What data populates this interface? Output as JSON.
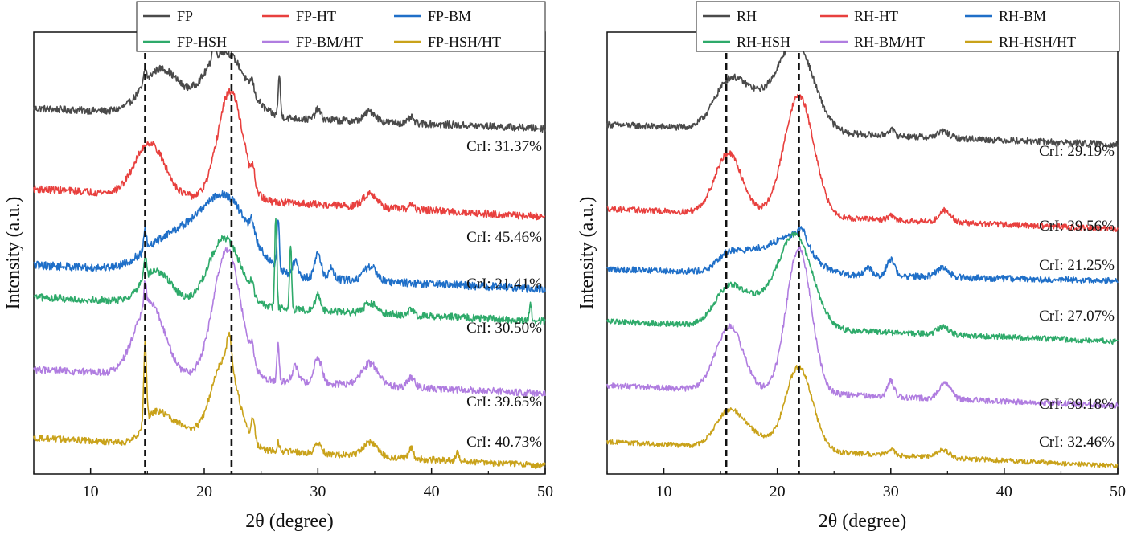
{
  "chart_data": [
    {
      "type": "line",
      "xlabel": "2θ (degree)",
      "ylabel": "Intensity (a.u.)",
      "xlim": [
        5,
        50
      ],
      "ylim": [
        -0.2,
        10.8
      ],
      "xticks": [
        10,
        20,
        30,
        40,
        50
      ],
      "y_ticks_shown": false,
      "grid": false,
      "legend_placement": "top",
      "dashed_reference_lines_x": [
        14.8,
        22.4
      ],
      "series": [
        {
          "name": "FP",
          "color": "#4a4a4a",
          "offset": 8.4,
          "baseline_start": 0.5,
          "baseline_end": 0.0,
          "noise": 0.09,
          "peaks": [
            [
              14.8,
              0.35,
              0.12
            ],
            [
              16.2,
              1.1,
              1.6
            ],
            [
              21.8,
              1.6,
              1.8
            ],
            [
              20.8,
              0.35,
              0.15
            ],
            [
              24.2,
              0.3,
              0.15
            ],
            [
              26.6,
              1.0,
              0.1
            ],
            [
              30.0,
              0.25,
              0.25
            ],
            [
              34.6,
              0.25,
              0.5
            ],
            [
              38.2,
              0.15,
              0.2
            ]
          ],
          "cri": "CrI: 31.37%"
        },
        {
          "name": "FP-HT",
          "color": "#e8403e",
          "offset": 6.2,
          "baseline_start": 0.7,
          "baseline_end": 0.0,
          "noise": 0.09,
          "peaks": [
            [
              15.2,
              1.3,
              1.3
            ],
            [
              22.3,
              2.7,
              1.1
            ],
            [
              24.3,
              0.35,
              0.15
            ],
            [
              34.6,
              0.35,
              0.6
            ],
            [
              38.2,
              0.15,
              0.2
            ]
          ],
          "cri": "CrI: 45.46%"
        },
        {
          "name": "FP-BM",
          "color": "#1f6fc8",
          "offset": 4.4,
          "baseline_start": 0.6,
          "baseline_end": 0.0,
          "noise": 0.1,
          "peaks": [
            [
              14.8,
              0.5,
              0.12
            ],
            [
              17.0,
              0.8,
              2.2
            ],
            [
              21.8,
              1.9,
              2.2
            ],
            [
              24.2,
              0.35,
              0.2
            ],
            [
              26.5,
              1.3,
              0.1
            ],
            [
              28.0,
              0.4,
              0.2
            ],
            [
              30.0,
              0.6,
              0.3
            ],
            [
              31.2,
              0.3,
              0.2
            ],
            [
              34.6,
              0.35,
              0.6
            ]
          ],
          "cri": "CrI: 21.41%"
        },
        {
          "name": "FP-HSH",
          "color": "#2eaa6a",
          "offset": 3.6,
          "baseline_start": 0.6,
          "baseline_end": 0.0,
          "noise": 0.09,
          "peaks": [
            [
              14.8,
              0.55,
              0.12
            ],
            [
              15.8,
              0.8,
              1.3
            ],
            [
              21.8,
              1.7,
              1.4
            ],
            [
              24.2,
              0.3,
              0.15
            ],
            [
              26.3,
              2.3,
              0.09
            ],
            [
              27.6,
              1.6,
              0.09
            ],
            [
              30.0,
              0.4,
              0.25
            ],
            [
              34.6,
              0.25,
              0.5
            ],
            [
              38.2,
              0.15,
              0.2
            ],
            [
              48.7,
              0.5,
              0.09
            ]
          ],
          "cri": "CrI: 30.50%"
        },
        {
          "name": "FP-BM/HT",
          "color": "#b07de0",
          "offset": 1.8,
          "baseline_start": 0.6,
          "baseline_end": 0.0,
          "noise": 0.09,
          "peaks": [
            [
              14.8,
              0.6,
              0.12
            ],
            [
              15.2,
              1.8,
              1.3
            ],
            [
              22.0,
              3.2,
              1.2
            ],
            [
              24.2,
              0.35,
              0.15
            ],
            [
              26.5,
              0.9,
              0.1
            ],
            [
              28.0,
              0.4,
              0.25
            ],
            [
              30.0,
              0.6,
              0.35
            ],
            [
              34.6,
              0.55,
              0.7
            ],
            [
              38.2,
              0.25,
              0.3
            ]
          ],
          "cri": "CrI: 39.65%"
        },
        {
          "name": "FP-HSH/HT",
          "color": "#c9a21a",
          "offset": 0.0,
          "baseline_start": 0.7,
          "baseline_end": 0.0,
          "noise": 0.08,
          "peaks": [
            [
              14.8,
              2.0,
              0.12
            ],
            [
              15.6,
              0.6,
              1.0
            ],
            [
              17.6,
              0.5,
              1.5
            ],
            [
              21.8,
              2.2,
              1.2
            ],
            [
              22.2,
              0.8,
              0.2
            ],
            [
              24.3,
              0.6,
              0.15
            ],
            [
              26.5,
              0.25,
              0.1
            ],
            [
              30.0,
              0.25,
              0.3
            ],
            [
              34.6,
              0.35,
              0.6
            ],
            [
              38.2,
              0.25,
              0.2
            ],
            [
              42.3,
              0.2,
              0.15
            ]
          ],
          "cri": "CrI: 40.73%"
        }
      ]
    },
    {
      "type": "line",
      "xlabel": "2θ (degree)",
      "ylabel": "Intensity (a.u.)",
      "xlim": [
        5,
        50
      ],
      "ylim": [
        -0.2,
        10.8
      ],
      "xticks": [
        10,
        20,
        30,
        40,
        50
      ],
      "y_ticks_shown": false,
      "grid": false,
      "legend_placement": "top",
      "dashed_reference_lines_x": [
        15.5,
        21.9
      ],
      "series": [
        {
          "name": "RH",
          "color": "#4a4a4a",
          "offset": 8.0,
          "baseline_start": 0.5,
          "baseline_end": 0.0,
          "noise": 0.08,
          "peaks": [
            [
              15.6,
              1.0,
              1.3
            ],
            [
              17.8,
              0.7,
              1.5
            ],
            [
              21.6,
              2.2,
              1.6
            ],
            [
              30.0,
              0.15,
              0.3
            ],
            [
              34.6,
              0.15,
              0.5
            ]
          ],
          "cri": "CrI: 29.19%"
        },
        {
          "name": "RH-HT",
          "color": "#e8403e",
          "offset": 5.9,
          "baseline_start": 0.5,
          "baseline_end": 0.0,
          "noise": 0.07,
          "peaks": [
            [
              15.7,
              1.5,
              1.2
            ],
            [
              21.9,
              3.0,
              1.3
            ],
            [
              30.0,
              0.1,
              0.3
            ],
            [
              34.8,
              0.3,
              0.5
            ]
          ],
          "cri": "CrI: 39.56%"
        },
        {
          "name": "RH-BM",
          "color": "#1f6fc8",
          "offset": 4.6,
          "baseline_start": 0.3,
          "baseline_end": 0.0,
          "noise": 0.08,
          "peaks": [
            [
              15.6,
              0.3,
              0.9
            ],
            [
              17.8,
              0.5,
              1.6
            ],
            [
              21.4,
              0.9,
              1.6
            ],
            [
              22.2,
              0.3,
              0.4
            ],
            [
              28.0,
              0.2,
              0.3
            ],
            [
              30.0,
              0.4,
              0.35
            ],
            [
              34.6,
              0.25,
              0.5
            ]
          ],
          "cri": "CrI: 21.25%"
        },
        {
          "name": "RH-HSH",
          "color": "#2eaa6a",
          "offset": 3.1,
          "baseline_start": 0.5,
          "baseline_end": 0.0,
          "noise": 0.07,
          "peaks": [
            [
              15.6,
              0.8,
              1.2
            ],
            [
              18.0,
              0.6,
              1.6
            ],
            [
              21.6,
              2.3,
              1.5
            ],
            [
              34.6,
              0.2,
              0.5
            ]
          ],
          "cri": "CrI: 27.07%"
        },
        {
          "name": "RH-BM/HT",
          "color": "#b07de0",
          "offset": 1.5,
          "baseline_start": 0.5,
          "baseline_end": 0.0,
          "noise": 0.07,
          "peaks": [
            [
              15.8,
              1.6,
              1.2
            ],
            [
              21.9,
              3.6,
              1.1
            ],
            [
              30.0,
              0.4,
              0.3
            ],
            [
              34.8,
              0.4,
              0.5
            ]
          ],
          "cri": "CrI: 39.18%"
        },
        {
          "name": "RH-HSH/HT",
          "color": "#c9a21a",
          "offset": 0.0,
          "baseline_start": 0.6,
          "baseline_end": 0.0,
          "noise": 0.06,
          "peaks": [
            [
              15.6,
              0.8,
              1.1
            ],
            [
              17.5,
              0.4,
              1.3
            ],
            [
              21.9,
              2.1,
              1.2
            ],
            [
              30.0,
              0.15,
              0.3
            ],
            [
              34.6,
              0.2,
              0.5
            ]
          ],
          "cri": "CrI: 32.46%"
        }
      ]
    }
  ]
}
